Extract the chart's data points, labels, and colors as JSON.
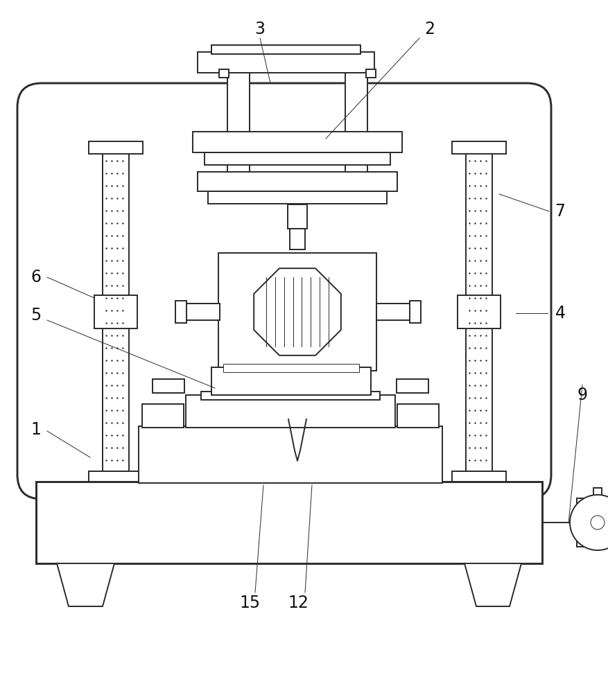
{
  "bg_color": "#ffffff",
  "line_color": "#2a2a2a",
  "lw": 1.4,
  "thin_lw": 0.7,
  "label_fontsize": 17
}
